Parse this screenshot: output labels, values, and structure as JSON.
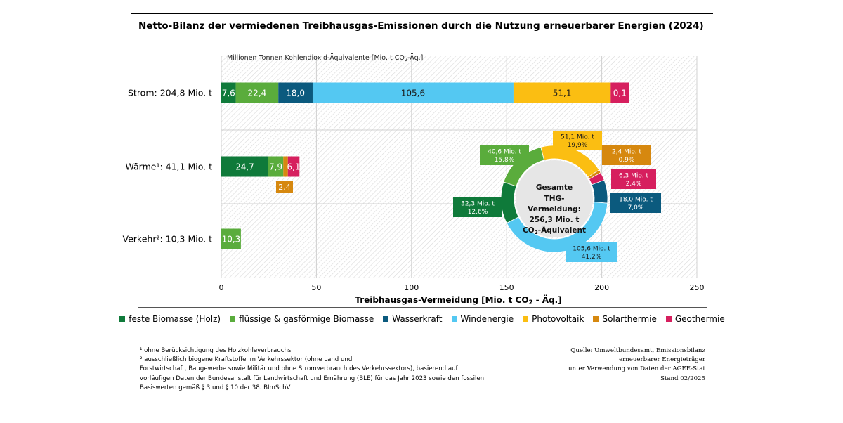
{
  "title": "Netto-Bilanz der vermiedenen Treibhausgas-Emissionen durch die Nutzung erneuerbarer Energien (2024)",
  "colors": {
    "feste_biomasse": "#0f7a3a",
    "fluessige_biomasse": "#5aac3c",
    "wasserkraft": "#0b5a7e",
    "windenergie": "#54c8f2",
    "photovoltaik": "#fbbe12",
    "solarthermie": "#d6880f",
    "geothermie": "#d61f5e"
  },
  "chart_data": [
    {
      "type": "bar",
      "orientation": "horizontal",
      "stacked": true,
      "unit_label": "Millionen Tonnen Kohlendioxid-Äquivalente [Mio. t CO₂-Äq.]",
      "xlabel": "Treibhausgas-Vermeidung [Mio. t CO₂ - Äq.]",
      "xlim": [
        0,
        250
      ],
      "xticks": [
        "0",
        "50",
        "100",
        "150",
        "200",
        "250"
      ],
      "categories": [
        "Strom: 204,8 Mio. t",
        "Wärme¹: 41,1 Mio. t",
        "Verkehr²: 10,3 Mio. t"
      ],
      "series": [
        {
          "name": "feste Biomasse (Holz)",
          "color": "#0f7a3a",
          "values": [
            7.6,
            24.7,
            0
          ],
          "labels": [
            "7,6",
            "24,7",
            ""
          ]
        },
        {
          "name": "flüssige & gasförmige Biomasse",
          "color": "#5aac3c",
          "values": [
            22.4,
            7.9,
            10.3
          ],
          "labels": [
            "22,4",
            "7,9",
            "10,3"
          ]
        },
        {
          "name": "Wasserkraft",
          "color": "#0b5a7e",
          "values": [
            18.0,
            0,
            0
          ],
          "labels": [
            "18,0",
            "",
            ""
          ]
        },
        {
          "name": "Windenergie",
          "color": "#54c8f2",
          "values": [
            105.6,
            0,
            0
          ],
          "labels": [
            "105,6",
            "",
            ""
          ]
        },
        {
          "name": "Photovoltaik",
          "color": "#fbbe12",
          "values": [
            51.1,
            0,
            0
          ],
          "labels": [
            "51,1",
            "",
            ""
          ]
        },
        {
          "name": "Solarthermie",
          "color": "#d6880f",
          "values": [
            0,
            2.4,
            0
          ],
          "labels": [
            "",
            "2,4",
            ""
          ]
        },
        {
          "name": "Geothermie",
          "color": "#d61f5e",
          "values": [
            0.1,
            6.1,
            0
          ],
          "labels": [
            "0,1",
            "6,1",
            ""
          ]
        }
      ],
      "grid": true
    },
    {
      "type": "pie",
      "donut": true,
      "center_lines": [
        "Gesamte",
        "THG-",
        "Vermeidung:",
        "256,3 Mio. t",
        "CO₂-Äquivalent"
      ],
      "slices": [
        {
          "name": "feste Biomasse (Holz)",
          "value": 32.3,
          "color": "#0f7a3a",
          "labels": [
            "32,3 Mio. t",
            "12,6%"
          ]
        },
        {
          "name": "flüssige & gasförmige Biomasse",
          "value": 40.6,
          "color": "#5aac3c",
          "labels": [
            "40,6 Mio. t",
            "15,8%"
          ]
        },
        {
          "name": "Photovoltaik",
          "value": 51.1,
          "color": "#fbbe12",
          "labels": [
            "51,1 Mio. t",
            "19,9%"
          ]
        },
        {
          "name": "Solarthermie",
          "value": 2.4,
          "color": "#d6880f",
          "labels": [
            "2,4 Mio. t",
            "0,9%"
          ]
        },
        {
          "name": "Geothermie",
          "value": 6.3,
          "color": "#d61f5e",
          "labels": [
            "6,3 Mio. t",
            "2,4%"
          ]
        },
        {
          "name": "Wasserkraft",
          "value": 18.0,
          "color": "#0b5a7e",
          "labels": [
            "18,0 Mio. t",
            "7,0%"
          ]
        },
        {
          "name": "Windenergie",
          "value": 105.6,
          "color": "#54c8f2",
          "labels": [
            "105,6 Mio. t",
            "41,2%"
          ]
        }
      ]
    }
  ],
  "legend": [
    {
      "label": "feste Biomasse (Holz)",
      "color": "#0f7a3a"
    },
    {
      "label": "flüssige & gasförmige Biomasse",
      "color": "#5aac3c"
    },
    {
      "label": "Wasserkraft",
      "color": "#0b5a7e"
    },
    {
      "label": "Windenergie",
      "color": "#54c8f2"
    },
    {
      "label": "Photovoltaik",
      "color": "#fbbe12"
    },
    {
      "label": "Solarthermie",
      "color": "#d6880f"
    },
    {
      "label": "Geothermie",
      "color": "#d61f5e"
    }
  ],
  "footnotes": [
    "¹ ohne Berücksichtigung des Holzkohleverbrauchs",
    "² ausschließlich biogene Kraftstoffe im Verkehrssektor (ohne Land und",
    "Forstwirtschaft, Baugewerbe sowie Militär und ohne Stromverbrauch des Verkehrssektors), basierend auf",
    "vorläufigen Daten der Bundesanstalt für Landwirtschaft und Ernährung (BLE) für das Jahr 2023  sowie den fossilen",
    "Basiswerten gemäß § 3 und § 10 der 38. BImSchV"
  ],
  "source": [
    "Quelle: Umweltbundesamt, Emissionsbilanz",
    "erneuerbarer Energieträger",
    "unter Verwendung von Daten der AGEE-Stat",
    "Stand 02/2025"
  ]
}
